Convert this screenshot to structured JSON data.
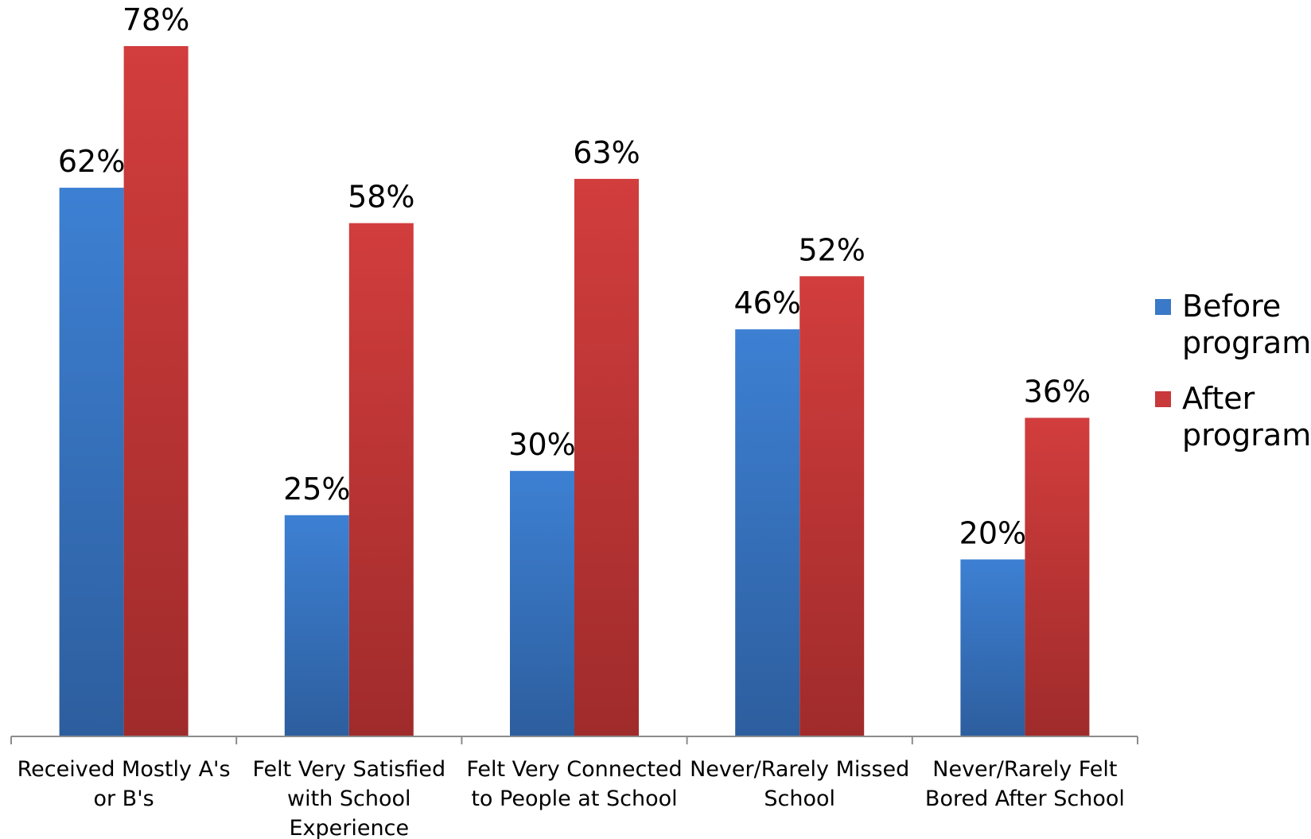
{
  "chart_data": {
    "type": "bar",
    "categories": [
      [
        "Received Mostly A's",
        "or B's"
      ],
      [
        "Felt Very Satisfied",
        "with School",
        "Experience"
      ],
      [
        "Felt Very Connected",
        "to People at School"
      ],
      [
        "Never/Rarely Missed",
        "School"
      ],
      [
        "Never/Rarely Felt",
        "Bored After School"
      ]
    ],
    "series": [
      {
        "name": "Before program",
        "values": [
          62,
          25,
          30,
          46,
          20
        ],
        "labels": [
          "62%",
          "25%",
          "30%",
          "46%",
          "20%"
        ],
        "color": "#3A78C8"
      },
      {
        "name": "After program",
        "values": [
          78,
          58,
          63,
          52,
          36
        ],
        "labels": [
          "78%",
          "58%",
          "63%",
          "52%",
          "36%"
        ],
        "color": "#C9383A"
      }
    ],
    "ylim": [
      0,
      100
    ],
    "grid": false,
    "legend_position": "right",
    "legend": [
      {
        "lines": [
          "Before",
          "program"
        ],
        "color": "#3A78C8"
      },
      {
        "lines": [
          "After",
          "program"
        ],
        "color": "#C9383A"
      }
    ]
  }
}
